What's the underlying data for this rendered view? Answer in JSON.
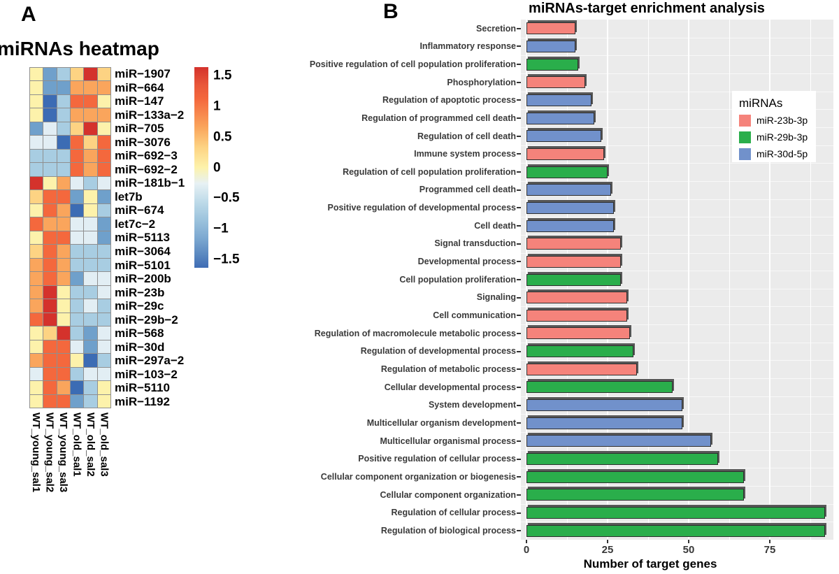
{
  "chart_data": [
    {
      "type": "heatmap",
      "panel_label": "A",
      "title": "miRNAs heatmap",
      "columns": [
        "WT_young_sal1",
        "WT_young_sal2",
        "WT_young_sal3",
        "WT_old_sal1",
        "WT_old_sal2",
        "WT_old_sal3"
      ],
      "rows": [
        "miR−1907",
        "miR−664",
        "miR−147",
        "miR−133a−2",
        "miR−705",
        "miR−3076",
        "miR−692−3",
        "miR−692−2",
        "miR−181b−1",
        "let7b",
        "miR−674",
        "let7c−2",
        "miR−5113",
        "miR−3064",
        "miR−5101",
        "miR−200b",
        "miR−23b",
        "miR−29c",
        "miR−29b−2",
        "miR−568",
        "miR−30d",
        "miR−297a−2",
        "miR−103−2",
        "miR−5110",
        "miR−1192"
      ],
      "palette": {
        "R": "#d4322c",
        "O": "#f4683d",
        "LO": "#faa55c",
        "Y": "#fdd383",
        "PY": "#fdf2ab",
        "PB": "#e2eef4",
        "LB": "#a8cde2",
        "MB": "#6fa0cb",
        "DB": "#3c6cb4"
      },
      "cells": [
        [
          "PY",
          "MB",
          "LB",
          "Y",
          "R",
          "Y"
        ],
        [
          "PY",
          "MB",
          "MB",
          "LO",
          "LO",
          "LO"
        ],
        [
          "PY",
          "DB",
          "LB",
          "O",
          "O",
          "PY"
        ],
        [
          "PY",
          "DB",
          "LB",
          "LO",
          "LO",
          "LO"
        ],
        [
          "MB",
          "PB",
          "LB",
          "Y",
          "R",
          "PY"
        ],
        [
          "PB",
          "PB",
          "DB",
          "O",
          "Y",
          "O"
        ],
        [
          "LB",
          "LB",
          "LB",
          "O",
          "LO",
          "O"
        ],
        [
          "LB",
          "LB",
          "LB",
          "O",
          "LO",
          "O"
        ],
        [
          "R",
          "PY",
          "LO",
          "PB",
          "LB",
          "PB"
        ],
        [
          "Y",
          "O",
          "O",
          "MB",
          "PY",
          "MB"
        ],
        [
          "PY",
          "O",
          "LO",
          "DB",
          "PY",
          "LB"
        ],
        [
          "O",
          "LO",
          "LO",
          "PB",
          "PB",
          "MB"
        ],
        [
          "PY",
          "O",
          "O",
          "PB",
          "PB",
          "MB"
        ],
        [
          "Y",
          "O",
          "LO",
          "LB",
          "LB",
          "LB"
        ],
        [
          "LO",
          "O",
          "LO",
          "LB",
          "LB",
          "LB"
        ],
        [
          "LO",
          "O",
          "LO",
          "MB",
          "PB",
          "PB"
        ],
        [
          "LO",
          "R",
          "PY",
          "LB",
          "LB",
          "PB"
        ],
        [
          "LO",
          "R",
          "PY",
          "LB",
          "PB",
          "LB"
        ],
        [
          "O",
          "R",
          "PY",
          "LB",
          "LB",
          "LB"
        ],
        [
          "PY",
          "Y",
          "R",
          "LB",
          "MB",
          "PB"
        ],
        [
          "PY",
          "O",
          "O",
          "PB",
          "MB",
          "PB"
        ],
        [
          "LO",
          "O",
          "O",
          "PY",
          "DB",
          "LB"
        ],
        [
          "PB",
          "O",
          "O",
          "LB",
          "PB",
          "PB"
        ],
        [
          "PY",
          "O",
          "LO",
          "DB",
          "LB",
          "PY"
        ],
        [
          "PY",
          "O",
          "O",
          "MB",
          "LB",
          "PY"
        ]
      ],
      "colorbar_ticks": [
        "1.5",
        "1",
        "0.5",
        "0",
        "−0.5",
        "−1",
        "−1.5"
      ],
      "colorbar_range": [
        1.5,
        -1.5
      ]
    },
    {
      "type": "bar",
      "orientation": "horizontal",
      "panel_label": "B",
      "title": "miRNAs-target enrichment analysis",
      "xlabel": "Number of target genes",
      "xlim": [
        0,
        94
      ],
      "x_ticks": [
        0,
        25,
        50,
        75
      ],
      "grid": true,
      "legend": {
        "title": "miRNAs",
        "position": "inside-right",
        "items": [
          {
            "label": "miR-23b-3p",
            "color": "#f5837b"
          },
          {
            "label": "miR-29b-3p",
            "color": "#2aae4b"
          },
          {
            "label": "miR-30d-5p",
            "color": "#7191cb"
          }
        ]
      },
      "series_colors": {
        "miR-23b-3p": "#f5837b",
        "miR-29b-3p": "#2aae4b",
        "miR-30d-5p": "#7191cb"
      },
      "categories": [
        "Secretion",
        "Inflammatory response",
        "Positive regulation of cell population proliferation",
        "Phosphorylation",
        "Regulation of apoptotic process",
        "Regulation of programmed cell death",
        "Regulation of cell death",
        "Immune system process",
        "Regulation of cell population proliferation",
        "Programmed cell death",
        "Positive regulation of developmental process",
        "Cell death",
        "Signal transduction",
        "Developmental process",
        "Cell population proliferation",
        "Signaling",
        "Cell communication",
        "Regulation of macromolecule metabolic process",
        "Regulation of developmental process",
        "Regulation of metabolic process",
        "Cellular developmental process",
        "System development",
        "Multicellular organism development",
        "Multicellular organismal process",
        "Positive regulation of cellular process",
        "Cellular component organization or biogenesis",
        "Cellular component organization",
        "Regulation of cellular process",
        "Regulation of biological process"
      ],
      "values": [
        15,
        15,
        16,
        18,
        20,
        21,
        23,
        24,
        25,
        26,
        27,
        27,
        29,
        29,
        29,
        31,
        31,
        32,
        33,
        34,
        45,
        48,
        48,
        57,
        59,
        67,
        67,
        92,
        92
      ],
      "groups": [
        "miR-23b-3p",
        "miR-30d-5p",
        "miR-29b-3p",
        "miR-23b-3p",
        "miR-30d-5p",
        "miR-30d-5p",
        "miR-30d-5p",
        "miR-23b-3p",
        "miR-29b-3p",
        "miR-30d-5p",
        "miR-30d-5p",
        "miR-30d-5p",
        "miR-23b-3p",
        "miR-23b-3p",
        "miR-29b-3p",
        "miR-23b-3p",
        "miR-23b-3p",
        "miR-23b-3p",
        "miR-29b-3p",
        "miR-23b-3p",
        "miR-29b-3p",
        "miR-30d-5p",
        "miR-30d-5p",
        "miR-30d-5p",
        "miR-29b-3p",
        "miR-29b-3p",
        "miR-29b-3p",
        "miR-29b-3p",
        "miR-29b-3p"
      ],
      "panel_background": "#ebebeb",
      "gridline_color": "#ffffff"
    }
  ]
}
